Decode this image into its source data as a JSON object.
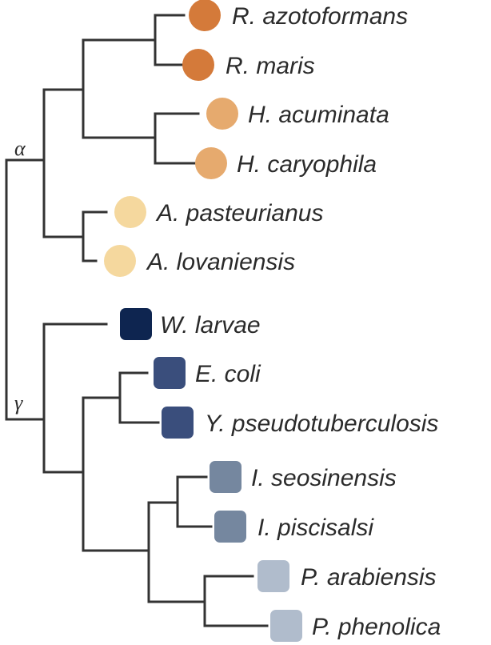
{
  "clades": {
    "alpha": "α",
    "gamma": "γ"
  },
  "colors": {
    "rhodo": "#D47A3A",
    "hypho": "#E6AA6E",
    "aceto": "#F5D89E",
    "wig": "#0E2550",
    "ent": "#3A4E7C",
    "idi": "#75879F",
    "pseudo": "#B0BCCC"
  },
  "taxa": [
    {
      "label": "R. azotoformans",
      "marker": "circle",
      "color_key": "rhodo"
    },
    {
      "label": "R. maris",
      "marker": "circle",
      "color_key": "rhodo"
    },
    {
      "label": "H. acuminata",
      "marker": "circle",
      "color_key": "hypho"
    },
    {
      "label": "H. caryophila",
      "marker": "circle",
      "color_key": "hypho"
    },
    {
      "label": "A. pasteurianus",
      "marker": "circle",
      "color_key": "aceto"
    },
    {
      "label": "A. lovaniensis",
      "marker": "circle",
      "color_key": "aceto"
    },
    {
      "label": "W. larvae",
      "marker": "square",
      "color_key": "wig"
    },
    {
      "label": "E. coli",
      "marker": "square",
      "color_key": "ent"
    },
    {
      "label": "Y. pseudotuberculosis",
      "marker": "square",
      "color_key": "ent"
    },
    {
      "label": "I. seosinensis",
      "marker": "square",
      "color_key": "idi"
    },
    {
      "label": "I. piscisalsi",
      "marker": "square",
      "color_key": "idi"
    },
    {
      "label": "P. arabiensis",
      "marker": "square",
      "color_key": "pseudo"
    },
    {
      "label": "P. phenolica",
      "marker": "square",
      "color_key": "pseudo"
    }
  ]
}
